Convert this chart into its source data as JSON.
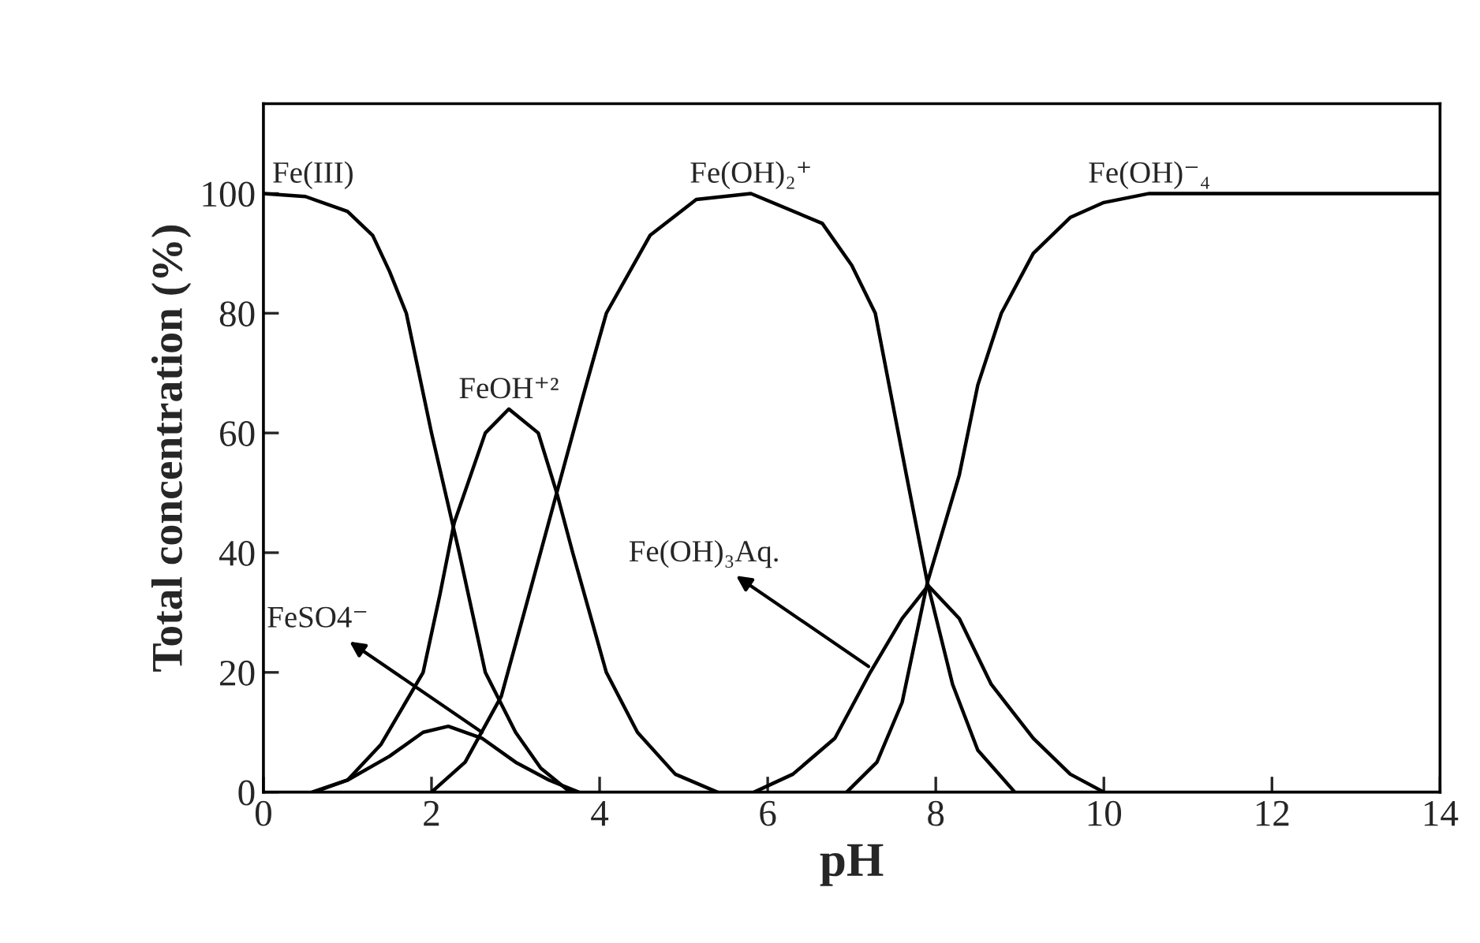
{
  "chart_data": {
    "type": "line",
    "xlabel": "pH",
    "ylabel": "Total concentration (%)",
    "xlim": [
      0,
      14
    ],
    "ylim": [
      0,
      115
    ],
    "xticks": [
      0,
      2,
      4,
      6,
      8,
      10,
      12,
      14
    ],
    "yticks": [
      0,
      20,
      40,
      60,
      80,
      100
    ],
    "grid": false,
    "marker": "none",
    "line_style": "solid",
    "series": [
      {
        "name": "Fe(III)",
        "color": "#000000",
        "x": [
          0,
          0.5,
          1,
          1.3,
          1.5,
          1.7,
          2.0,
          2.33,
          2.64,
          3.0,
          3.3,
          3.65
        ],
        "values": [
          100,
          99.5,
          97,
          93,
          87,
          80,
          60,
          40,
          20,
          10,
          4,
          0
        ]
      },
      {
        "name": "FeOH⁺²",
        "color": "#000000",
        "x": [
          0.58,
          1.0,
          1.4,
          1.9,
          2.1,
          2.27,
          2.64,
          2.92,
          3.27,
          3.49,
          3.68,
          4.08,
          4.45,
          4.9,
          5.4
        ],
        "values": [
          0,
          2,
          8,
          20,
          33,
          45,
          60,
          64,
          60,
          50,
          40,
          20,
          10,
          3,
          0
        ]
      },
      {
        "color": "#000000",
        "x": [
          0.6,
          1.0,
          1.5,
          1.9,
          2.2,
          2.6,
          3.0,
          3.4,
          3.75
        ],
        "values": [
          0,
          2,
          6,
          10,
          11,
          9,
          5,
          2,
          0
        ]
      },
      {
        "name": "Fe(OH)₂⁺",
        "color": "#000000",
        "x": [
          2.0,
          2.4,
          2.83,
          3.2,
          3.49,
          3.8,
          4.08,
          4.6,
          5.15,
          5.8,
          6.65,
          7.0,
          7.28,
          7.65,
          7.9,
          8.2,
          8.5,
          8.94
        ],
        "values": [
          0,
          5,
          16,
          35,
          50,
          66,
          80,
          93,
          99,
          100,
          95,
          88,
          80,
          53,
          35,
          18,
          7,
          0
        ]
      },
      {
        "color": "#000000",
        "x": [
          5.84,
          6.3,
          6.8,
          7.22,
          7.6,
          7.91,
          8.28,
          8.66,
          9.16,
          9.6,
          10.0
        ],
        "values": [
          0,
          3,
          9,
          20,
          29,
          34.5,
          29,
          18,
          9,
          3,
          0
        ]
      },
      {
        "name": "Fe(OH)⁻₄",
        "color": "#000000",
        "x": [
          6.94,
          7.3,
          7.6,
          7.9,
          8.28,
          8.5,
          8.78,
          9.16,
          9.6,
          10.0,
          10.54,
          14
        ],
        "values": [
          0,
          5,
          15,
          35,
          53,
          68,
          80,
          90,
          96,
          98.5,
          100,
          100
        ]
      }
    ],
    "annotations": [
      {
        "text": "FeSO4⁻",
        "x": 2.6,
        "y": 10
      },
      {
        "text": "Fe(OH)₃Aq.",
        "x": 7.2,
        "y": 21
      }
    ]
  }
}
